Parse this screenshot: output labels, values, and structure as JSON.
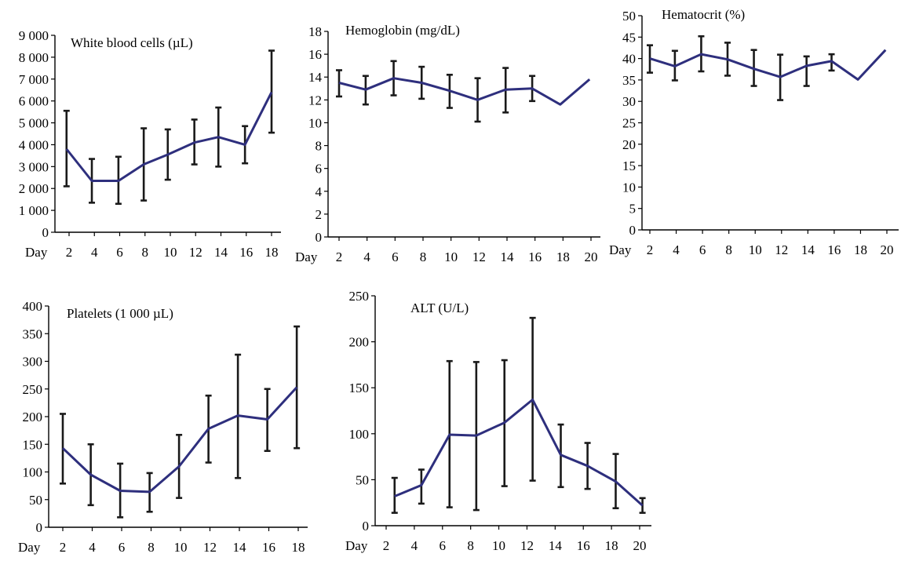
{
  "colors": {
    "line": "#2e2f7d",
    "error_bar": "#1a1a1a",
    "axis": "#000000",
    "background": "#ffffff"
  },
  "chart_data": [
    {
      "id": "wbc",
      "type": "line",
      "title": "White blood cells (µL)",
      "x_prefix": "Day",
      "x_ticks": [
        2,
        4,
        6,
        8,
        10,
        12,
        14,
        16,
        18
      ],
      "y_ticks": [
        0,
        1000,
        2000,
        3000,
        4000,
        5000,
        6000,
        7000,
        8000,
        9000
      ],
      "y_tick_labels": [
        "0",
        "1 000",
        "2 000",
        "3 000",
        "4 000",
        "5 000",
        "6 000",
        "7 000",
        "8 000",
        "9 000"
      ],
      "ylim": [
        0,
        9000
      ],
      "xlim": [
        1,
        18.3
      ],
      "grid": false,
      "series": [
        {
          "x": [
            1.8,
            3.8,
            5.9,
            7.9,
            9.8,
            11.9,
            13.8,
            15.9,
            18.0
          ],
          "y": [
            3800,
            2350,
            2350,
            3100,
            3550,
            4100,
            4350,
            4000,
            6400
          ],
          "err_low": [
            2100,
            1350,
            1300,
            1450,
            2400,
            3100,
            3000,
            3150,
            4550
          ],
          "err_high": [
            5550,
            3350,
            3450,
            4750,
            4700,
            5150,
            5700,
            4850,
            8300
          ]
        }
      ]
    },
    {
      "id": "hgb",
      "type": "line",
      "title": "Hemoglobin (mg/dL)",
      "x_prefix": "Day",
      "x_ticks": [
        2,
        4,
        6,
        8,
        10,
        12,
        14,
        16,
        18,
        20
      ],
      "y_ticks": [
        0,
        2,
        4,
        6,
        8,
        10,
        12,
        14,
        16,
        18
      ],
      "y_tick_labels": [
        "0",
        "2",
        "4",
        "6",
        "8",
        "10",
        "12",
        "14",
        "16",
        "18"
      ],
      "ylim": [
        0,
        18
      ],
      "xlim": [
        1,
        20.3
      ],
      "grid": false,
      "series": [
        {
          "x": [
            2.0,
            3.9,
            5.9,
            7.9,
            9.9,
            11.9,
            13.9,
            15.8,
            17.8,
            19.9
          ],
          "y": [
            13.5,
            12.9,
            13.9,
            13.5,
            12.8,
            12.0,
            12.9,
            13.0,
            11.6,
            13.8
          ],
          "err_low": [
            12.3,
            11.6,
            12.4,
            12.1,
            11.3,
            10.1,
            10.9,
            11.9,
            null,
            null
          ],
          "err_high": [
            14.6,
            14.1,
            15.4,
            14.9,
            14.2,
            13.9,
            14.8,
            14.1,
            null,
            null
          ]
        }
      ]
    },
    {
      "id": "hct",
      "type": "line",
      "title": "Hematocrit (%)",
      "x_prefix": "Day",
      "x_ticks": [
        2,
        4,
        6,
        8,
        10,
        12,
        14,
        16,
        18,
        20
      ],
      "y_ticks": [
        0,
        5,
        10,
        15,
        20,
        25,
        30,
        35,
        40,
        45,
        50
      ],
      "y_tick_labels": [
        "0",
        "5",
        "10",
        "15",
        "20",
        "25",
        "30",
        "35",
        "40",
        "45",
        "50"
      ],
      "ylim": [
        0,
        50
      ],
      "xlim": [
        1,
        20.3
      ],
      "grid": false,
      "series": [
        {
          "x": [
            2.0,
            3.9,
            5.9,
            7.9,
            9.9,
            11.9,
            13.9,
            15.8,
            17.8,
            19.9
          ],
          "y": [
            40.0,
            38.2,
            41.0,
            39.8,
            37.6,
            35.7,
            38.3,
            39.4,
            35.1,
            42.0
          ],
          "err_low": [
            36.7,
            34.9,
            37.0,
            36.0,
            33.6,
            30.3,
            33.6,
            37.2,
            null,
            null
          ],
          "err_high": [
            43.1,
            41.8,
            45.2,
            43.7,
            42.0,
            40.9,
            40.5,
            41.0,
            null,
            null
          ]
        }
      ]
    },
    {
      "id": "plt",
      "type": "line",
      "title": "Platelets (1 000 µL)",
      "x_prefix": "Day",
      "x_ticks": [
        2,
        4,
        6,
        8,
        10,
        12,
        14,
        16,
        18
      ],
      "y_ticks": [
        0,
        50,
        100,
        150,
        200,
        250,
        300,
        350,
        400
      ],
      "y_tick_labels": [
        "0",
        "50",
        "100",
        "150",
        "200",
        "250",
        "300",
        "350",
        "400"
      ],
      "ylim": [
        0,
        400
      ],
      "xlim": [
        1,
        18.3
      ],
      "grid": false,
      "series": [
        {
          "x": [
            2.0,
            3.9,
            5.9,
            7.9,
            9.9,
            11.9,
            13.9,
            15.9,
            17.9
          ],
          "y": [
            143,
            95,
            66,
            64,
            110,
            178,
            202,
            195,
            253
          ],
          "err_low": [
            79,
            40,
            18,
            28,
            53,
            117,
            89,
            138,
            143
          ],
          "err_high": [
            205,
            150,
            115,
            98,
            167,
            238,
            312,
            250,
            363
          ]
        }
      ]
    },
    {
      "id": "alt",
      "type": "line",
      "title": "ALT (U/L)",
      "x_prefix": "Day",
      "x_ticks": [
        2,
        4,
        6,
        8,
        10,
        12,
        14,
        16,
        18,
        20
      ],
      "y_ticks": [
        0,
        50,
        100,
        150,
        200,
        250
      ],
      "y_tick_labels": [
        "0",
        "50",
        "100",
        "150",
        "200",
        "250"
      ],
      "ylim": [
        0,
        250
      ],
      "xlim": [
        1,
        20.3
      ],
      "grid": false,
      "series": [
        {
          "x": [
            2.6,
            4.5,
            6.5,
            8.4,
            10.4,
            12.4,
            14.4,
            16.3,
            18.3,
            20.2
          ],
          "y": [
            32,
            44,
            99,
            98,
            112,
            137,
            77,
            65,
            48,
            22
          ],
          "err_low": [
            14,
            24,
            20,
            17,
            43,
            49,
            42,
            40,
            19,
            14
          ],
          "err_high": [
            52,
            61,
            179,
            178,
            180,
            226,
            110,
            90,
            78,
            30
          ]
        }
      ]
    }
  ]
}
